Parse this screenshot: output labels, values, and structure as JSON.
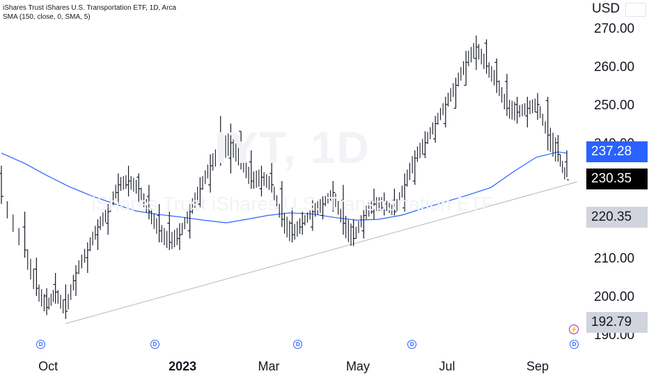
{
  "legend": {
    "title": "iShares Trust iShares U.S. Transportation ETF, 1D, Arca",
    "indicator": "SMA (150, close, 0, SMA, 5)"
  },
  "watermark": {
    "symbol": "IYT, 1D",
    "name": "iShares Trust iShares U.S. Transportation ETF"
  },
  "currency": "USD",
  "price_labels": {
    "sma": "237.28",
    "last": "230.35",
    "support_upper": "220.35",
    "support_lower": "192.79"
  },
  "markers": {
    "dividend": "D",
    "split": "⚡"
  },
  "colors": {
    "bar": "#131722",
    "sma_line": "#2962ff",
    "trend_line": "#b2b5be",
    "axis_text": "#131722",
    "last_label_bg": "#000000",
    "sma_label_bg": "#2962ff",
    "gray_label_bg": "#d1d4dc"
  },
  "chart_data": {
    "type": "ohlc",
    "title": "iShares Trust iShares U.S. Transportation ETF, 1D, Arca",
    "ylim": [
      188,
      274
    ],
    "yticks": [
      190,
      200,
      210,
      220,
      230,
      240,
      250,
      260,
      270
    ],
    "ytick_labels": [
      "190.00",
      "200.00",
      "210.00",
      "220.00",
      "230.00",
      "240.00",
      "250.00",
      "260.00",
      "270.00"
    ],
    "xtick_labels": [
      "Oct",
      "2023",
      "Mar",
      "May",
      "Jul",
      "Sep"
    ],
    "xticks": [
      "2022-10-01",
      "2023-01-01",
      "2023-03-01",
      "2023-05-01",
      "2023-07-01",
      "2023-09-01"
    ],
    "series": [
      {
        "kind": "ohlc",
        "dates": [
          "2022-08-30",
          "2022-09-15",
          "2022-09-23",
          "2022-09-30",
          "2022-10-06",
          "2022-10-13",
          "2022-10-20",
          "2022-10-28",
          "2022-11-04",
          "2022-11-11",
          "2022-11-18",
          "2022-11-25",
          "2022-12-02",
          "2022-12-09",
          "2022-12-16",
          "2022-12-23",
          "2022-12-30",
          "2023-01-06",
          "2023-01-13",
          "2023-01-20",
          "2023-01-27",
          "2023-02-03",
          "2023-02-10",
          "2023-02-17",
          "2023-02-24",
          "2023-03-03",
          "2023-03-10",
          "2023-03-17",
          "2023-03-24",
          "2023-03-31",
          "2023-04-07",
          "2023-04-14",
          "2023-04-21",
          "2023-04-28",
          "2023-05-05",
          "2023-05-12",
          "2023-05-19",
          "2023-05-26",
          "2023-06-02",
          "2023-06-09",
          "2023-06-16",
          "2023-06-23",
          "2023-06-30",
          "2023-07-07",
          "2023-07-14",
          "2023-07-21",
          "2023-07-28",
          "2023-08-04",
          "2023-08-11",
          "2023-08-18",
          "2023-08-25",
          "2023-09-01",
          "2023-09-08",
          "2023-09-15",
          "2023-09-21"
        ],
        "open": [
          232,
          218,
          207,
          200,
          203,
          199,
          204,
          210,
          216,
          219,
          227,
          229,
          231,
          226,
          221,
          219,
          215,
          217,
          224,
          229,
          236,
          236,
          243,
          235,
          228,
          232,
          228,
          219,
          218,
          218,
          221,
          225,
          225,
          218,
          217,
          222,
          223,
          225,
          223,
          230,
          237,
          241,
          245,
          249,
          255,
          262,
          266,
          261,
          256,
          250,
          247,
          248,
          251,
          240,
          235
        ],
        "high": [
          234,
          222,
          210,
          202,
          206,
          203,
          208,
          214,
          220,
          224,
          232,
          234,
          232,
          229,
          224,
          222,
          219,
          224,
          231,
          237,
          247,
          245,
          243,
          238,
          234,
          235,
          230,
          223,
          222,
          225,
          226,
          230,
          229,
          220,
          223,
          228,
          227,
          228,
          232,
          238,
          243,
          247,
          252,
          257,
          264,
          268,
          267,
          262,
          258,
          252,
          252,
          253,
          252,
          242,
          238
        ],
        "low": [
          224,
          210,
          200,
          195,
          198,
          194,
          200,
          206,
          212,
          216,
          224,
          226,
          224,
          220,
          214,
          212,
          212,
          215,
          223,
          227,
          234,
          232,
          233,
          228,
          226,
          227,
          218,
          214,
          216,
          217,
          220,
          222,
          216,
          213,
          215,
          220,
          221,
          221,
          222,
          229,
          236,
          240,
          244,
          249,
          255,
          259,
          258,
          253,
          247,
          245,
          244,
          246,
          238,
          235,
          231
        ],
        "close": [
          226,
          212,
          202,
          197,
          201,
          196,
          206,
          212,
          218,
          222,
          229,
          230,
          228,
          222,
          217,
          214,
          216,
          222,
          228,
          234,
          238,
          240,
          236,
          230,
          231,
          229,
          220,
          216,
          219,
          222,
          224,
          227,
          219,
          215,
          221,
          224,
          224,
          222,
          229,
          236,
          240,
          245,
          250,
          255,
          261,
          265,
          260,
          256,
          249,
          248,
          249,
          250,
          242,
          237,
          230.35
        ]
      },
      {
        "kind": "line",
        "name": "SMA (150, close, 0, SMA, 5)",
        "dates": [
          "2022-08-30",
          "2022-09-15",
          "2022-09-30",
          "2022-10-15",
          "2022-10-31",
          "2022-11-15",
          "2022-11-30",
          "2022-12-15",
          "2022-12-31",
          "2023-01-15",
          "2023-01-31",
          "2023-02-15",
          "2023-02-28",
          "2023-03-15",
          "2023-03-31",
          "2023-04-15",
          "2023-04-30",
          "2023-05-15",
          "2023-05-31",
          "2023-06-15",
          "2023-06-30",
          "2023-07-15",
          "2023-07-31",
          "2023-08-15",
          "2023-08-31",
          "2023-09-15",
          "2023-09-21"
        ],
        "values": [
          237.3,
          234.6,
          231.5,
          228.6,
          226.1,
          224.1,
          222.2,
          221.3,
          220.6,
          219.8,
          219.1,
          220.1,
          221.0,
          221.7,
          221.4,
          220.5,
          219.8,
          220.0,
          221.1,
          222.9,
          224.6,
          226.3,
          228.3,
          232.3,
          236.2,
          237.6,
          237.28
        ]
      },
      {
        "kind": "trendline",
        "dates": [
          "2022-10-13",
          "2023-09-28"
        ],
        "values": [
          192.79,
          229.8
        ]
      }
    ],
    "dividends": [
      "2022-09-26",
      "2022-12-13",
      "2023-03-21",
      "2023-06-07",
      "2023-09-26"
    ],
    "split_events": [
      "2023-09-26"
    ]
  }
}
